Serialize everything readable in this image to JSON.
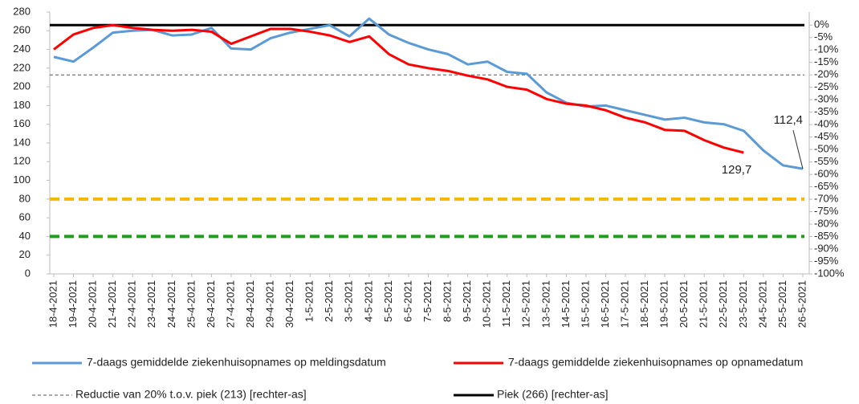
{
  "chart_data": {
    "type": "line",
    "categories": [
      "18-4-2021",
      "19-4-2021",
      "20-4-2021",
      "21-4-2021",
      "22-4-2021",
      "23-4-2021",
      "24-4-2021",
      "25-4-2021",
      "26-4-2021",
      "27-4-2021",
      "28-4-2021",
      "29-4-2021",
      "30-4-2021",
      "1-5-2021",
      "2-5-2021",
      "3-5-2021",
      "4-5-2021",
      "5-5-2021",
      "6-5-2021",
      "7-5-2021",
      "8-5-2021",
      "9-5-2021",
      "10-5-2021",
      "11-5-2021",
      "12-5-2021",
      "13-5-2021",
      "14-5-2021",
      "15-5-2021",
      "16-5-2021",
      "17-5-2021",
      "18-5-2021",
      "19-5-2021",
      "20-5-2021",
      "21-5-2021",
      "22-5-2021",
      "23-5-2021",
      "24-5-2021",
      "25-5-2021",
      "26-5-2021"
    ],
    "series": [
      {
        "name": "7-daags gemiddelde ziekenhuisopnames op meldingsdatum",
        "color": "#5b9bd5",
        "values": [
          232,
          227,
          242,
          258,
          260,
          261,
          255,
          256,
          263,
          241,
          240,
          252,
          258,
          262,
          266,
          254,
          273,
          256,
          247,
          240,
          235,
          224,
          227,
          216,
          214,
          194,
          183,
          179,
          180,
          175,
          170,
          165,
          167,
          162,
          160,
          153,
          132,
          116,
          112.4
        ],
        "value_labels": [
          null,
          null,
          null,
          null,
          null,
          null,
          null,
          null,
          null,
          null,
          null,
          null,
          null,
          null,
          null,
          null,
          null,
          null,
          null,
          null,
          null,
          null,
          null,
          null,
          null,
          null,
          null,
          null,
          null,
          null,
          null,
          null,
          null,
          null,
          null,
          null,
          null,
          null,
          "112,4"
        ]
      },
      {
        "name": "7-daags gemiddelde ziekenhuisopnames op opnamedatum",
        "color": "#ff0000",
        "values": [
          240,
          256,
          263,
          266,
          263,
          261,
          260,
          261,
          259,
          246,
          254,
          262,
          262,
          259,
          255,
          248,
          254,
          235,
          224,
          220,
          217,
          212,
          208,
          200,
          197,
          187,
          182,
          180,
          175,
          167,
          162,
          154,
          153,
          143,
          135,
          129.7,
          null,
          null,
          null
        ],
        "value_labels": [
          null,
          null,
          null,
          null,
          null,
          null,
          null,
          null,
          null,
          null,
          null,
          null,
          null,
          null,
          null,
          null,
          null,
          null,
          null,
          null,
          null,
          null,
          null,
          null,
          null,
          null,
          null,
          null,
          null,
          null,
          null,
          null,
          null,
          null,
          null,
          "129,7",
          null,
          null,
          null
        ]
      }
    ],
    "lines": [
      {
        "name": "Reductie van 20% t.o.v. piek (213) [rechter-as]",
        "value": -20,
        "axis": "y2",
        "color": "#555555",
        "dash": true
      },
      {
        "name": "Piek (266) [rechter-as]",
        "value": 0,
        "axis": "y2",
        "color": "#000000",
        "dash": false
      }
    ],
    "reference_lines": [
      {
        "value": 80,
        "color": "#f5b800",
        "dash": true
      },
      {
        "value": 40,
        "color": "#1aa01a",
        "dash": true
      }
    ],
    "ylim": [
      0,
      280
    ],
    "yticks": [
      0,
      20,
      40,
      60,
      80,
      100,
      120,
      140,
      160,
      180,
      200,
      220,
      240,
      260,
      280
    ],
    "y2lim": [
      -100,
      5.26
    ],
    "y2ticks": [
      {
        "value": -100,
        "label": "-100%"
      },
      {
        "value": -95,
        "label": "-95%"
      },
      {
        "value": -90,
        "label": "-90%"
      },
      {
        "value": -85,
        "label": "-85%"
      },
      {
        "value": -80,
        "label": "-80%"
      },
      {
        "value": -75,
        "label": "-75%"
      },
      {
        "value": -70,
        "label": "-70%"
      },
      {
        "value": -65,
        "label": "-65%"
      },
      {
        "value": -60,
        "label": "-60%"
      },
      {
        "value": -55,
        "label": "-55%"
      },
      {
        "value": -50,
        "label": "-50%"
      },
      {
        "value": -45,
        "label": "-45%"
      },
      {
        "value": -40,
        "label": "-40%"
      },
      {
        "value": -35,
        "label": "-35%"
      },
      {
        "value": -30,
        "label": "-30%"
      },
      {
        "value": -25,
        "label": "-25%"
      },
      {
        "value": -20,
        "label": "-20%"
      },
      {
        "value": -15,
        "label": "-15%"
      },
      {
        "value": -10,
        "label": "-10%"
      },
      {
        "value": -5,
        "label": "-5%"
      },
      {
        "value": 0,
        "label": "0%"
      }
    ],
    "grid": false
  }
}
